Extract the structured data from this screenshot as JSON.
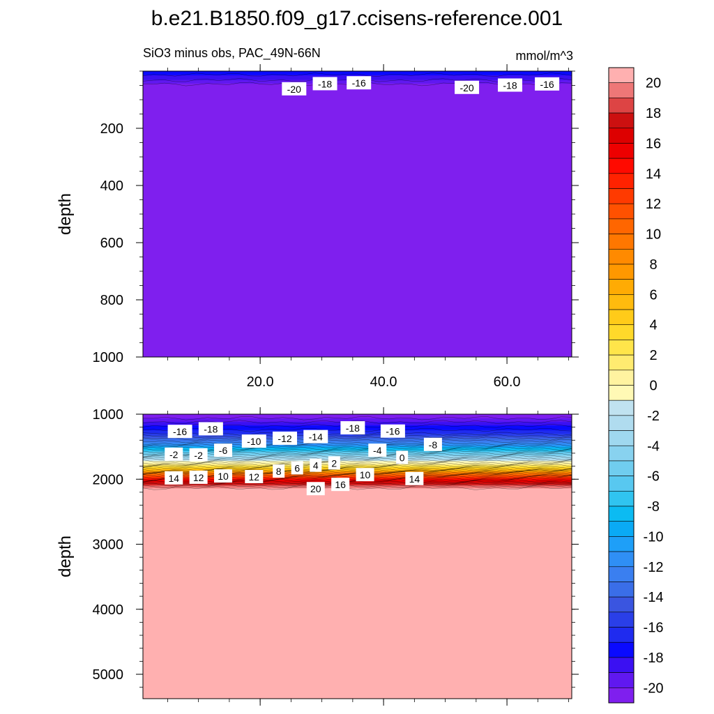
{
  "figure": {
    "title": "b.e21.B1850.f09_g17.ccisens-reference.001",
    "subtitle": "SiO3 minus obs, PAC_49N-66N",
    "units": "mmol/m^3"
  },
  "colors": {
    "levels": [
      -21,
      -20,
      -19,
      -18,
      -17,
      -16,
      -15,
      -14,
      -13,
      -12,
      -11,
      -10,
      -9,
      -8,
      -7,
      -6,
      -5,
      -4,
      -3,
      -2,
      -1,
      0,
      1,
      2,
      3,
      4,
      5,
      6,
      7,
      8,
      9,
      10,
      11,
      12,
      13,
      14,
      15,
      16,
      17,
      18,
      19,
      20,
      21
    ],
    "fills": [
      "#7f1fee",
      "#6018f0",
      "#3b10f2",
      "#0a0aff",
      "#1f2bef",
      "#2a3fe8",
      "#3a55e0",
      "#3a6ee8",
      "#3a7ff0",
      "#2f8ff5",
      "#1e9ff8",
      "#0aaaf5",
      "#0cbbf2",
      "#30c4f0",
      "#58c8f0",
      "#70cdef",
      "#88d2ef",
      "#9fd8ef",
      "#b0dcef",
      "#c0e2f0",
      "#fff9b5",
      "#fff3a0",
      "#ffeb70",
      "#ffe54a",
      "#ffd92a",
      "#ffcb19",
      "#ffbb0e",
      "#ffab04",
      "#ff9800",
      "#ff8a00",
      "#ff7700",
      "#ff6600",
      "#ff5100",
      "#ff3a00",
      "#ff2200",
      "#ff0a00",
      "#ee0000",
      "#dd0000",
      "#cc1010",
      "#dd4444",
      "#ee7777",
      "#ffb0b0"
    ]
  },
  "colorbar": {
    "tick_labels": [
      "20",
      "18",
      "16",
      "14",
      "12",
      "10",
      "8",
      "6",
      "4",
      "2",
      "0",
      "-2",
      "-4",
      "-6",
      "-8",
      "-10",
      "-12",
      "-14",
      "-16",
      "-18",
      "-20"
    ]
  },
  "chart_data": [
    {
      "type": "heatmap",
      "panel": "upper",
      "ylabel": "depth",
      "xlabel": "",
      "x_ticks": [
        "20.0",
        "40.0",
        "60.0"
      ],
      "y_ticks": [
        "200",
        "400",
        "600",
        "800",
        "1000"
      ],
      "xlim": [
        1,
        70.5
      ],
      "ylim": [
        0,
        1000
      ],
      "y_reversed": true,
      "profile": [
        [
          0,
          -17.5
        ],
        [
          25,
          -18.5
        ],
        [
          45,
          -20
        ],
        [
          60,
          -20.4
        ],
        [
          80,
          -20.8
        ],
        [
          100,
          -21
        ],
        [
          1000,
          -21
        ]
      ],
      "contour_labels": [
        {
          "text": "-20",
          "x": 25.5,
          "y": 63
        },
        {
          "text": "-18",
          "x": 30.5,
          "y": 45
        },
        {
          "text": "-16",
          "x": 36.0,
          "y": 42
        },
        {
          "text": "-20",
          "x": 53.5,
          "y": 58
        },
        {
          "text": "-18",
          "x": 60.5,
          "y": 50
        },
        {
          "text": "-16",
          "x": 66.5,
          "y": 46
        }
      ]
    },
    {
      "type": "heatmap",
      "panel": "lower",
      "ylabel": "depth",
      "xlabel": "",
      "x_ticks": [],
      "y_ticks": [
        "1000",
        "2000",
        "3000",
        "4000",
        "5000"
      ],
      "xlim": [
        1,
        70.5
      ],
      "ylim": [
        1000,
        5375
      ],
      "y_reversed": true,
      "profile": [
        [
          1000,
          -21
        ],
        [
          1150,
          -18.5
        ],
        [
          1300,
          -16
        ],
        [
          1450,
          -12
        ],
        [
          1550,
          -8
        ],
        [
          1650,
          -4
        ],
        [
          1750,
          0
        ],
        [
          1850,
          5
        ],
        [
          1950,
          12
        ],
        [
          2050,
          17
        ],
        [
          2120,
          19.5
        ],
        [
          2170,
          21
        ],
        [
          5375,
          21
        ]
      ],
      "contour_labels": [
        {
          "text": "-16",
          "x": 7.0,
          "y": 1270
        },
        {
          "text": "-18",
          "x": 12.0,
          "y": 1230
        },
        {
          "text": "-10",
          "x": 19.0,
          "y": 1420
        },
        {
          "text": "-12",
          "x": 24.0,
          "y": 1375
        },
        {
          "text": "-14",
          "x": 29.0,
          "y": 1350
        },
        {
          "text": "-18",
          "x": 35.0,
          "y": 1215
        },
        {
          "text": "-16",
          "x": 41.5,
          "y": 1265
        },
        {
          "text": "-8",
          "x": 48.0,
          "y": 1470
        },
        {
          "text": "-2",
          "x": 6.0,
          "y": 1620
        },
        {
          "text": "-2",
          "x": 10.0,
          "y": 1630
        },
        {
          "text": "-6",
          "x": 14.0,
          "y": 1560
        },
        {
          "text": "-4",
          "x": 39.0,
          "y": 1560
        },
        {
          "text": "0",
          "x": 43.0,
          "y": 1670
        },
        {
          "text": "14",
          "x": 6.0,
          "y": 1985
        },
        {
          "text": "12",
          "x": 10.0,
          "y": 1975
        },
        {
          "text": "10",
          "x": 14.0,
          "y": 1955
        },
        {
          "text": "12",
          "x": 19.0,
          "y": 1965
        },
        {
          "text": "8",
          "x": 23.0,
          "y": 1880
        },
        {
          "text": "6",
          "x": 26.0,
          "y": 1830
        },
        {
          "text": "4",
          "x": 29.0,
          "y": 1790
        },
        {
          "text": "2",
          "x": 32.0,
          "y": 1755
        },
        {
          "text": "20",
          "x": 29.0,
          "y": 2150
        },
        {
          "text": "16",
          "x": 33.0,
          "y": 2085
        },
        {
          "text": "10",
          "x": 37.0,
          "y": 1935
        },
        {
          "text": "14",
          "x": 45.0,
          "y": 1995
        }
      ]
    }
  ]
}
